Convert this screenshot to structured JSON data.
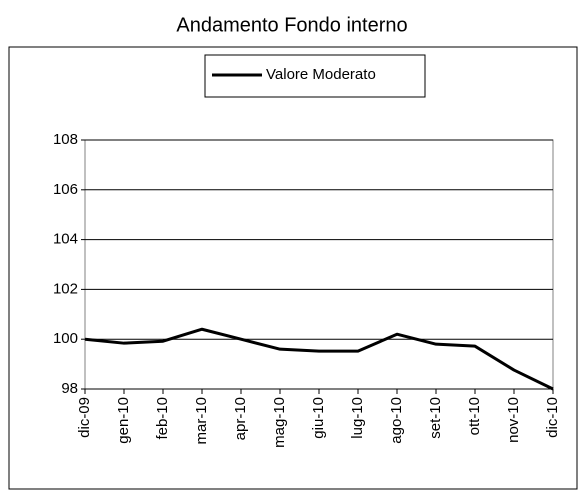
{
  "chart_data": {
    "type": "line",
    "title": "Andamento Fondo interno",
    "categories": [
      "dic-09",
      "gen-10",
      "feb-10",
      "mar-10",
      "apr-10",
      "mag-10",
      "giu-10",
      "lug-10",
      "ago-10",
      "set-10",
      "ott-10",
      "nov-10",
      "dic-10"
    ],
    "series": [
      {
        "name": "Valore Moderato",
        "color": "#000000",
        "values": [
          100.0,
          99.84,
          99.92,
          100.4,
          100.0,
          99.6,
          99.52,
          99.52,
          100.2,
          99.8,
          99.72,
          98.76,
          98.0
        ]
      }
    ],
    "ylim": [
      98,
      108
    ],
    "yticks": [
      98,
      100,
      102,
      104,
      106,
      108
    ],
    "grid": true,
    "legend": "top"
  }
}
